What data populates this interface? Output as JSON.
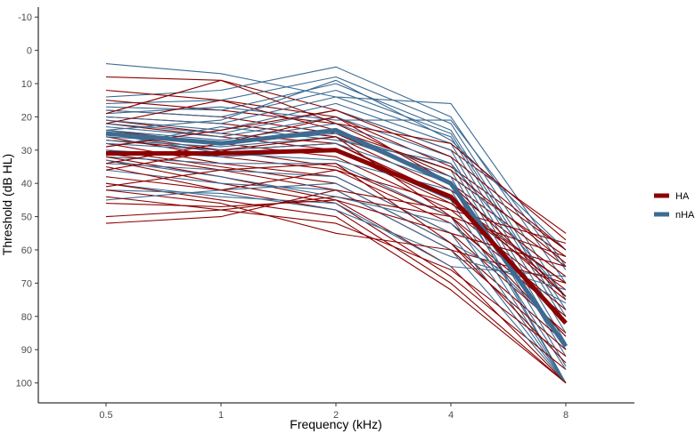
{
  "chart_data": {
    "type": "line",
    "title": "",
    "xlabel": "Frequency (kHz)",
    "ylabel": "Threshold (dB HL)",
    "x_categories": [
      "0.5",
      "1",
      "2",
      "4",
      "8"
    ],
    "y_ticks": [
      "-10",
      "0",
      "10",
      "20",
      "30",
      "40",
      "50",
      "60",
      "70",
      "80",
      "90",
      "100"
    ],
    "ylim": [
      -13,
      106
    ],
    "y_inverted": true,
    "grid": false,
    "legend_position": "right",
    "legend": [
      {
        "key": "HA",
        "label": "HA",
        "color": "#8b0000"
      },
      {
        "key": "nHA",
        "label": "nHA",
        "color": "#3d6b91"
      }
    ],
    "mean_series": [
      {
        "name": "HA",
        "values": [
          31,
          31,
          30,
          44,
          82
        ]
      },
      {
        "name": "nHA",
        "values": [
          25,
          28,
          24,
          40,
          89
        ]
      }
    ],
    "individual_series": {
      "HA": [
        [
          8,
          9,
          18,
          30,
          55
        ],
        [
          12,
          15,
          20,
          35,
          60
        ],
        [
          15,
          18,
          22,
          38,
          62
        ],
        [
          18,
          20,
          25,
          40,
          65
        ],
        [
          20,
          22,
          26,
          42,
          68
        ],
        [
          21,
          25,
          28,
          45,
          70
        ],
        [
          22,
          26,
          30,
          46,
          72
        ],
        [
          24,
          28,
          32,
          48,
          75
        ],
        [
          25,
          30,
          35,
          50,
          78
        ],
        [
          26,
          32,
          36,
          52,
          80
        ],
        [
          27,
          30,
          28,
          44,
          74
        ],
        [
          28,
          34,
          38,
          55,
          85
        ],
        [
          30,
          35,
          40,
          58,
          88
        ],
        [
          31,
          36,
          42,
          60,
          90
        ],
        [
          32,
          38,
          45,
          65,
          100
        ],
        [
          33,
          40,
          46,
          68,
          96
        ],
        [
          35,
          42,
          48,
          70,
          100
        ],
        [
          40,
          45,
          50,
          72,
          100
        ],
        [
          42,
          46,
          55,
          60,
          70
        ],
        [
          44,
          48,
          52,
          66,
          92
        ],
        [
          46,
          47,
          45,
          55,
          65
        ],
        [
          50,
          48,
          44,
          50,
          62
        ],
        [
          52,
          50,
          42,
          48,
          58
        ],
        [
          22,
          15,
          24,
          36,
          64
        ],
        [
          34,
          28,
          20,
          40,
          74
        ],
        [
          38,
          42,
          36,
          46,
          70
        ],
        [
          29,
          24,
          18,
          32,
          60
        ],
        [
          36,
          30,
          26,
          50,
          86
        ],
        [
          19,
          9,
          22,
          28,
          57
        ],
        [
          41,
          36,
          34,
          58,
          94
        ]
      ],
      "nHA": [
        [
          4,
          7,
          14,
          16,
          65
        ],
        [
          14,
          12,
          5,
          20,
          70
        ],
        [
          16,
          15,
          8,
          22,
          75
        ],
        [
          17,
          18,
          10,
          24,
          78
        ],
        [
          18,
          20,
          12,
          25,
          80
        ],
        [
          20,
          22,
          14,
          26,
          82
        ],
        [
          21,
          24,
          16,
          28,
          85
        ],
        [
          22,
          25,
          18,
          30,
          88
        ],
        [
          23,
          26,
          20,
          32,
          90
        ],
        [
          24,
          27,
          22,
          34,
          92
        ],
        [
          26,
          28,
          25,
          36,
          95
        ],
        [
          27,
          29,
          26,
          38,
          100
        ],
        [
          28,
          30,
          28,
          40,
          100
        ],
        [
          30,
          32,
          30,
          45,
          100
        ],
        [
          32,
          34,
          34,
          50,
          100
        ],
        [
          34,
          36,
          38,
          55,
          100
        ],
        [
          36,
          40,
          42,
          60,
          100
        ],
        [
          40,
          44,
          46,
          65,
          68
        ],
        [
          42,
          43,
          48,
          62,
          72
        ],
        [
          45,
          42,
          40,
          58,
          76
        ],
        [
          19,
          17,
          21,
          21,
          66
        ],
        [
          25,
          31,
          33,
          42,
          96
        ],
        [
          29,
          23,
          27,
          34,
          74
        ],
        [
          33,
          38,
          44,
          52,
          86
        ],
        [
          24,
          21,
          9,
          27,
          60
        ]
      ]
    }
  }
}
